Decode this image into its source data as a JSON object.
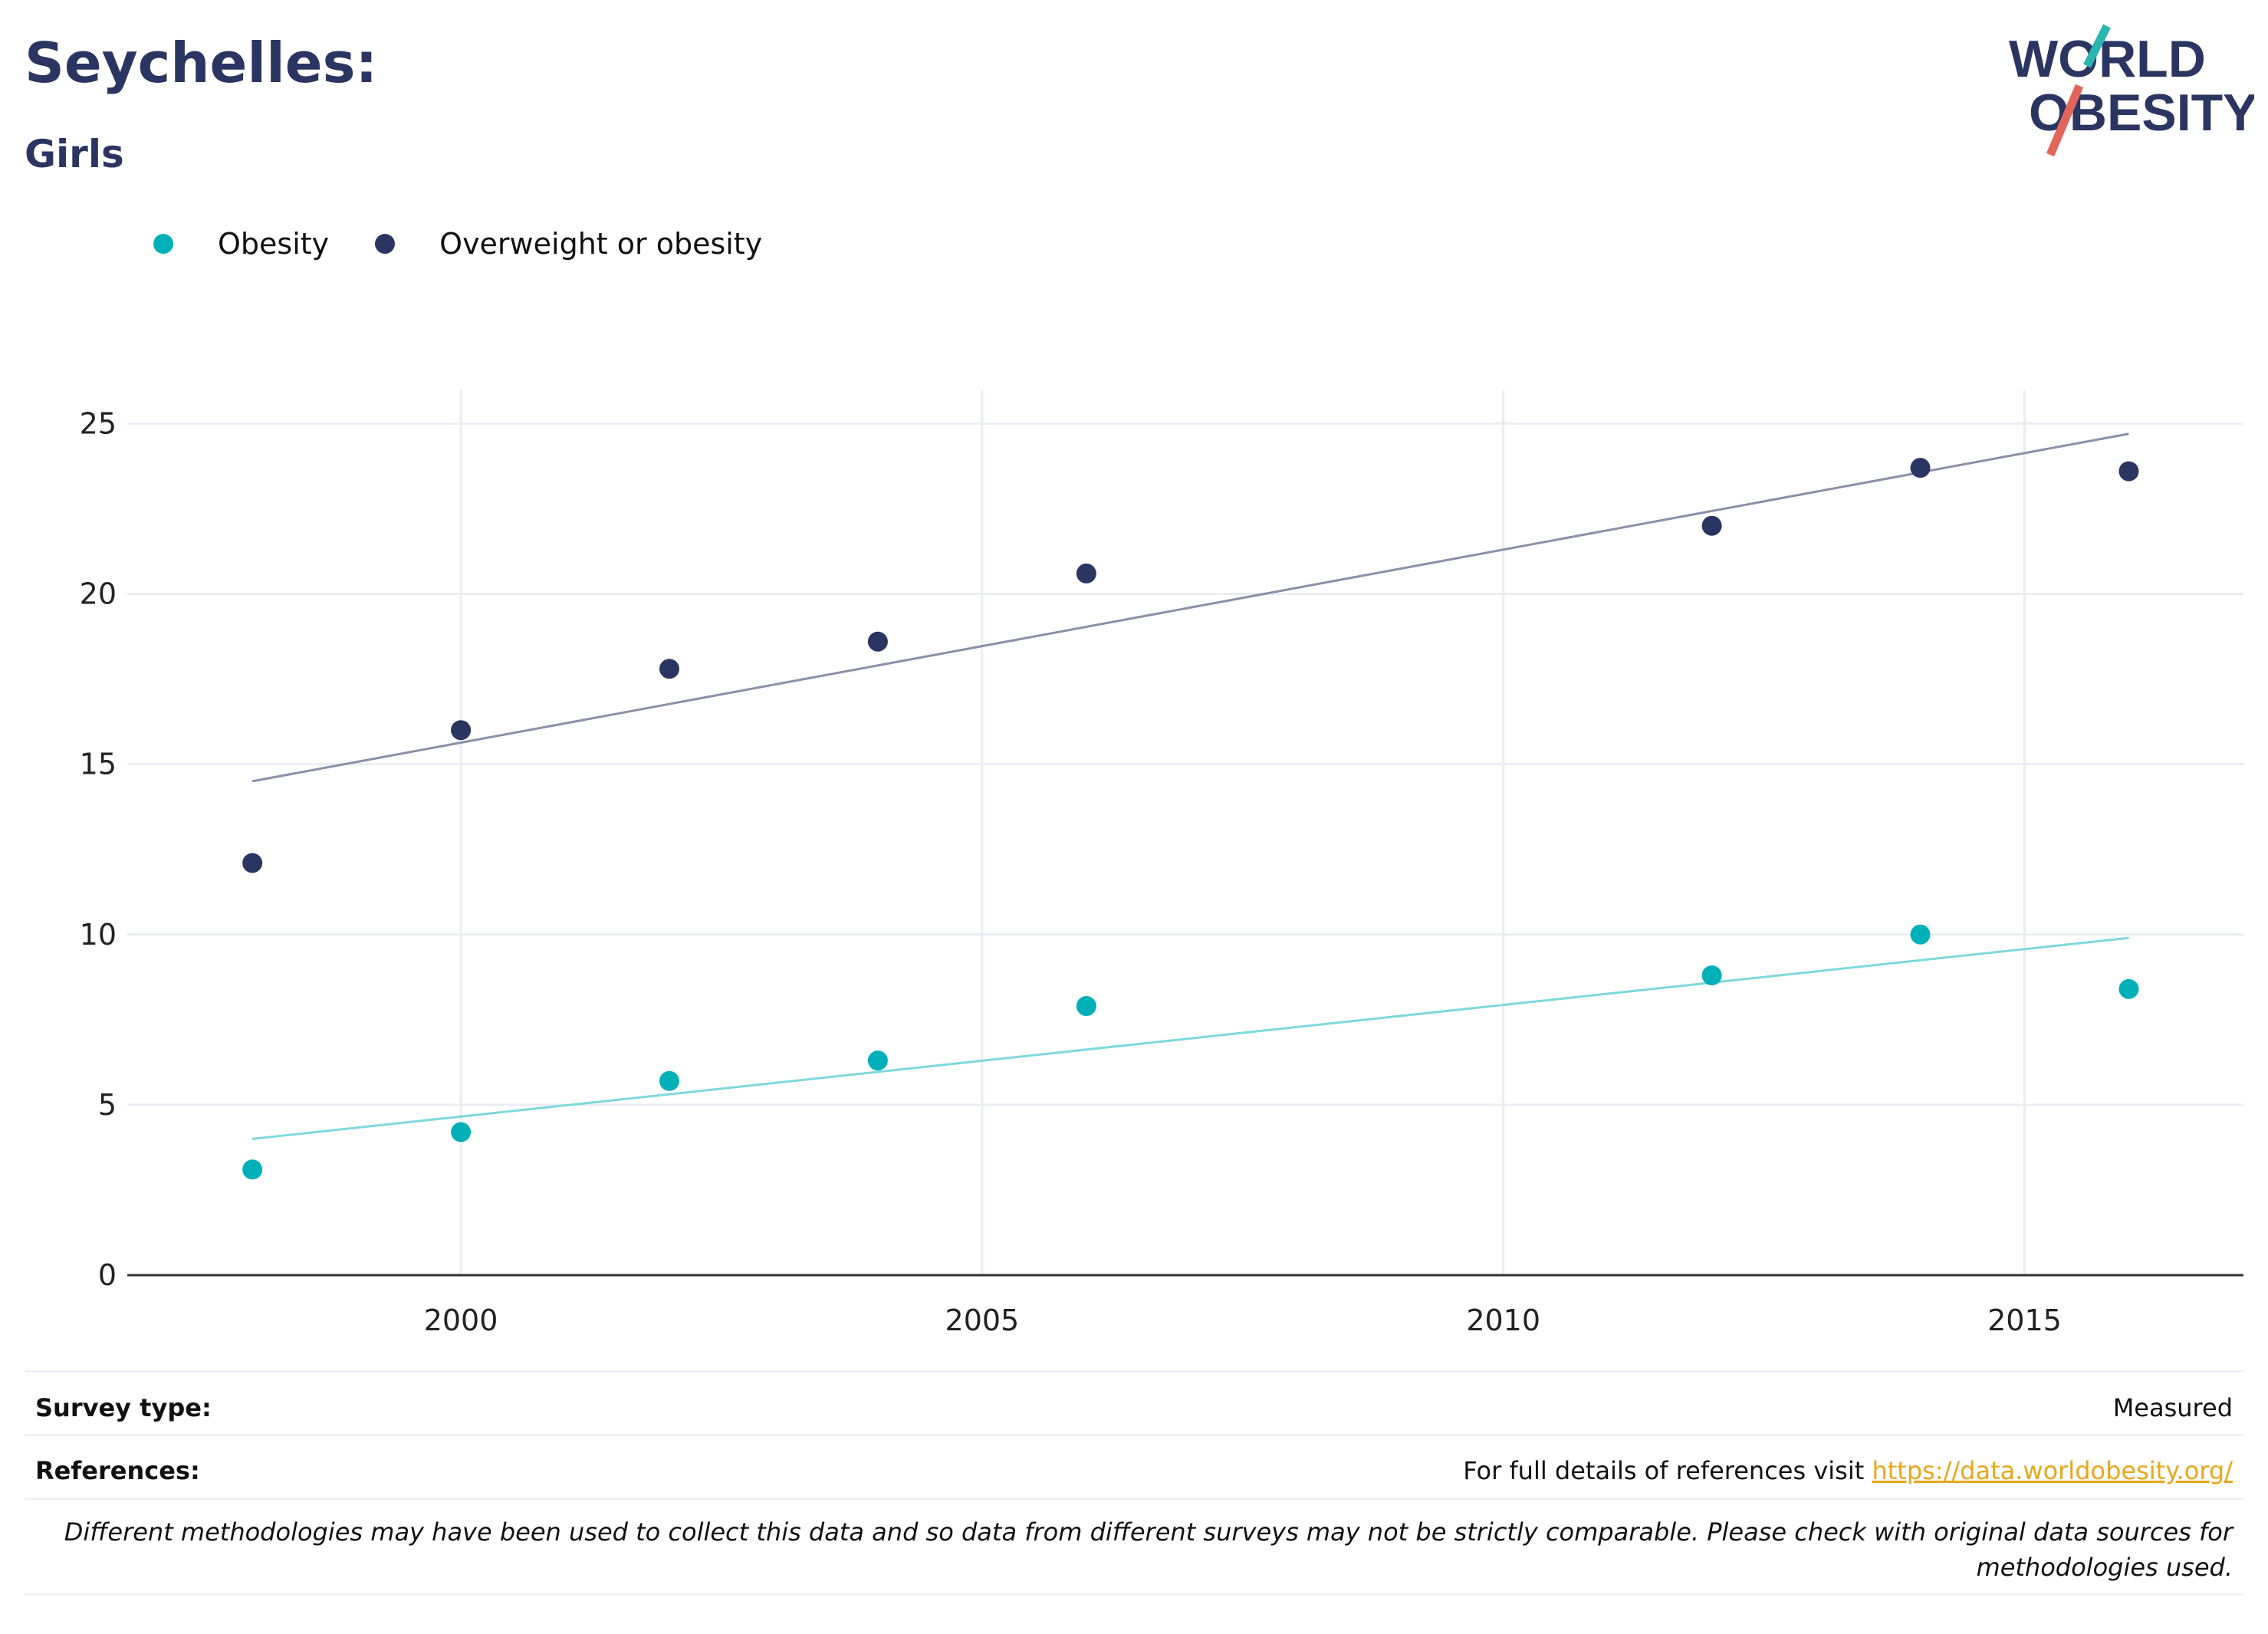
{
  "header": {
    "title": "Seychelles:",
    "subtitle": "Girls"
  },
  "logo": {
    "line1": "WORLD",
    "line2": "OBESITY",
    "colors": {
      "text": "#2b3561",
      "slash_top": "#2bb5b0",
      "slash_bottom": "#e2655a"
    }
  },
  "legend": [
    {
      "label": "Obesity",
      "color": "#00b0b9"
    },
    {
      "label": "Overweight or obesity",
      "color": "#2b3561"
    }
  ],
  "chart_data": {
    "type": "scatter",
    "xlim": [
      1996.8,
      2017.1
    ],
    "ylim": [
      0,
      26
    ],
    "x_ticks": [
      2000,
      2005,
      2010,
      2015
    ],
    "y_ticks": [
      0,
      5,
      10,
      15,
      20,
      25
    ],
    "grid": true,
    "legend_position": "top-left",
    "series": [
      {
        "name": "Obesity",
        "color": "#00b0b9",
        "trend_color": "#7fd8dc",
        "points": [
          {
            "x": 1998,
            "y": 3.1
          },
          {
            "x": 2000,
            "y": 4.2
          },
          {
            "x": 2002,
            "y": 5.7
          },
          {
            "x": 2004,
            "y": 6.3
          },
          {
            "x": 2006,
            "y": 7.9
          },
          {
            "x": 2012,
            "y": 8.8
          },
          {
            "x": 2014,
            "y": 10.0
          },
          {
            "x": 2016,
            "y": 8.4
          }
        ],
        "trend": [
          {
            "x": 1998,
            "y": 4.0
          },
          {
            "x": 2016,
            "y": 9.9
          }
        ]
      },
      {
        "name": "Overweight or obesity",
        "color": "#2b3561",
        "trend_color": "#8a90a8",
        "points": [
          {
            "x": 1998,
            "y": 12.1
          },
          {
            "x": 2000,
            "y": 16.0
          },
          {
            "x": 2002,
            "y": 17.8
          },
          {
            "x": 2004,
            "y": 18.6
          },
          {
            "x": 2006,
            "y": 20.6
          },
          {
            "x": 2012,
            "y": 22.0
          },
          {
            "x": 2014,
            "y": 23.7
          },
          {
            "x": 2016,
            "y": 23.6
          }
        ],
        "trend": [
          {
            "x": 1998,
            "y": 14.5
          },
          {
            "x": 2016,
            "y": 24.7
          }
        ]
      }
    ]
  },
  "footer": {
    "survey_label": "Survey type:",
    "survey_value": "Measured",
    "references_label": "References:",
    "references_text": "For full details of references visit",
    "references_link": "https://data.worldobesity.org/",
    "note": "Different methodologies may have been used to collect this data and so data from different surveys may not be strictly comparable. Please check with original data sources for methodologies used.",
    "link_color": "#e8a71c"
  }
}
